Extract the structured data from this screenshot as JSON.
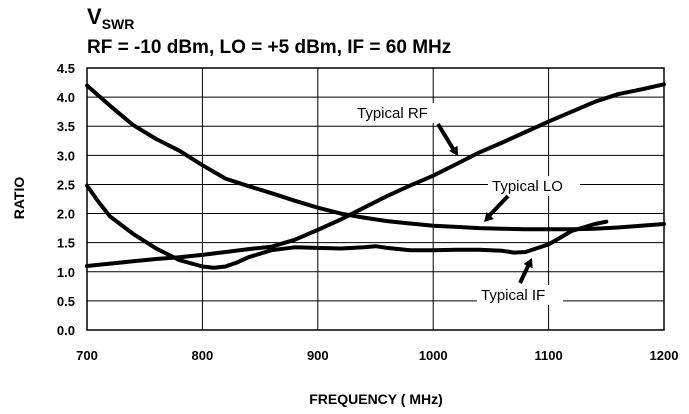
{
  "chart_data": {
    "type": "line",
    "title_main": "V",
    "title_sub": "SWR",
    "subtitle": "RF = -10 dBm, LO = +5 dBm, IF = 60 MHz",
    "xlabel": "FREQUENCY ( MHz)",
    "ylabel": "RATIO",
    "xlim": [
      700,
      1200
    ],
    "ylim": [
      0,
      4.5
    ],
    "x_ticks": [
      700,
      800,
      900,
      1000,
      1100,
      1200
    ],
    "y_ticks": [
      "0.0",
      "0.5",
      "1.0",
      "1.5",
      "2.0",
      "2.5",
      "3.0",
      "3.5",
      "4.0",
      "4.5"
    ],
    "grid": true,
    "series": [
      {
        "name": "Typical RF",
        "x": [
          700,
          720,
          740,
          760,
          780,
          800,
          820,
          840,
          860,
          880,
          900,
          920,
          940,
          960,
          980,
          1000,
          1020,
          1040,
          1060,
          1080,
          1100,
          1120,
          1140,
          1160,
          1180,
          1200
        ],
        "y": [
          1.1,
          1.14,
          1.18,
          1.22,
          1.25,
          1.29,
          1.34,
          1.39,
          1.43,
          1.55,
          1.72,
          1.9,
          2.1,
          2.3,
          2.48,
          2.65,
          2.85,
          3.05,
          3.22,
          3.4,
          3.58,
          3.75,
          3.92,
          4.05,
          4.13,
          4.22
        ]
      },
      {
        "name": "Typical LO",
        "x": [
          700,
          720,
          740,
          760,
          780,
          800,
          820,
          840,
          860,
          880,
          900,
          920,
          940,
          960,
          980,
          1000,
          1020,
          1040,
          1060,
          1080,
          1100,
          1120,
          1140,
          1160,
          1180,
          1200
        ],
        "y": [
          4.2,
          3.85,
          3.52,
          3.28,
          3.08,
          2.83,
          2.6,
          2.47,
          2.35,
          2.22,
          2.1,
          2.0,
          1.93,
          1.87,
          1.83,
          1.79,
          1.77,
          1.75,
          1.74,
          1.73,
          1.73,
          1.73,
          1.74,
          1.76,
          1.79,
          1.82
        ]
      },
      {
        "name": "Typical IF",
        "x": [
          700,
          710,
          720,
          740,
          760,
          780,
          800,
          810,
          820,
          830,
          840,
          860,
          880,
          900,
          920,
          940,
          950,
          960,
          980,
          1000,
          1020,
          1040,
          1060,
          1070,
          1080,
          1100,
          1120,
          1140,
          1150
        ],
        "y": [
          2.48,
          2.2,
          1.95,
          1.65,
          1.4,
          1.2,
          1.09,
          1.07,
          1.09,
          1.16,
          1.25,
          1.37,
          1.42,
          1.41,
          1.4,
          1.42,
          1.44,
          1.41,
          1.37,
          1.37,
          1.38,
          1.38,
          1.36,
          1.33,
          1.34,
          1.47,
          1.7,
          1.82,
          1.86
        ]
      }
    ],
    "annotations": [
      {
        "text": "Typical RF",
        "series": "Typical RF"
      },
      {
        "text": "Typical LO",
        "series": "Typical LO"
      },
      {
        "text": "Typical IF",
        "series": "Typical IF"
      }
    ]
  }
}
